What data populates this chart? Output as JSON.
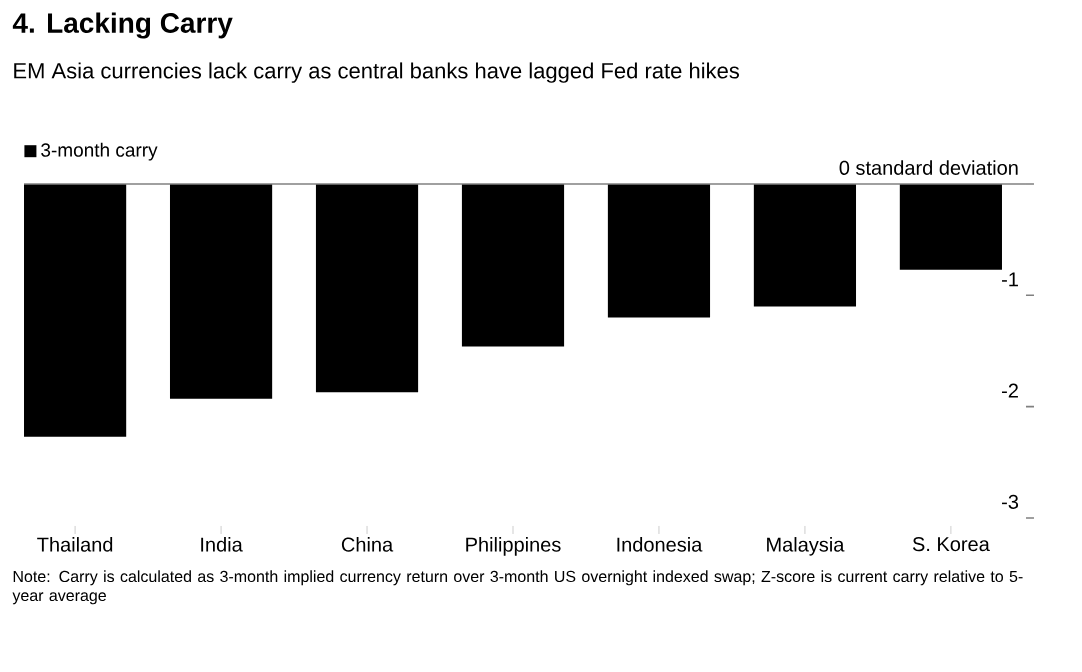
{
  "chart_data": {
    "type": "bar",
    "title": "4. Lacking Carry",
    "subtitle": "EM Asia currencies lack carry as central banks have lagged Fed rate hikes",
    "categories": [
      "Thailand",
      "India",
      "China",
      "Philippines",
      "Indonesia",
      "Malaysia",
      "S. Korea"
    ],
    "series": [
      {
        "name": "3-month carry",
        "color": "#000000",
        "values": [
          -2.27,
          -1.93,
          -1.87,
          -1.46,
          -1.2,
          -1.1,
          -0.77
        ]
      }
    ],
    "ylim": [
      -3,
      0
    ],
    "yticks": [
      {
        "value": 0,
        "label": "0 standard deviation"
      },
      -1,
      -2,
      -3
    ],
    "legend": "top left",
    "grid": false,
    "annotations": [
      "Note: Carry is calculated as 3-month implied currency return over 3-month US overnight indexed swap; Z-score is current carry relative to 5-year average"
    ]
  }
}
